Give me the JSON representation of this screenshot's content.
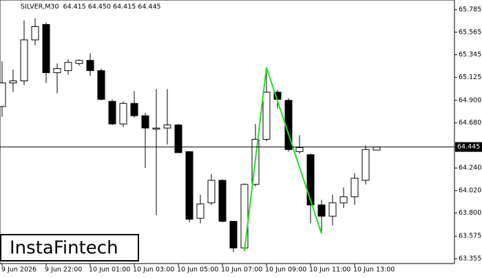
{
  "header": "SILVER,M30  64.415 64.450 64.415 64.445",
  "logo": "InstaFintech",
  "chart_data": {
    "type": "candlestick",
    "categories": [
      "9 Jun 2026",
      null,
      null,
      null,
      "9 Jun 22:00",
      null,
      null,
      null,
      "10 Jun 01:00",
      null,
      null,
      null,
      "10 Jun 03:00",
      null,
      null,
      null,
      "10 Jun 05:00",
      null,
      null,
      null,
      "10 Jun 07:00",
      null,
      null,
      null,
      "10 Jun 09:00",
      null,
      null,
      null,
      "10 Jun 11:00",
      null,
      null,
      null,
      "10 Jun 13:00",
      null,
      null
    ],
    "open": [
      64.84,
      65.07,
      65.09,
      65.49,
      65.64,
      65.17,
      65.19,
      65.26,
      65.29,
      65.19,
      64.89,
      64.67,
      64.87,
      64.75,
      64.62,
      64.63,
      64.66,
      64.4,
      63.75,
      63.9,
      64.12,
      63.72,
      63.46,
      64.08,
      64.52,
      64.98,
      64.9,
      64.4,
      64.37,
      63.88,
      63.77,
      63.9,
      63.96,
      64.12,
      64.415
    ],
    "high": [
      65.28,
      65.2,
      65.68,
      65.7,
      65.66,
      65.26,
      65.3,
      65.3,
      65.36,
      65.21,
      64.91,
      64.89,
      64.99,
      64.78,
      65.01,
      65.01,
      64.67,
      64.4,
      63.98,
      64.18,
      64.13,
      63.72,
      64.09,
      64.67,
      65.22,
      65.0,
      64.92,
      64.56,
      64.38,
      63.93,
      63.98,
      64.05,
      64.19,
      64.46,
      64.45
    ],
    "low": [
      64.74,
      64.98,
      65.05,
      65.44,
      65.07,
      64.97,
      65.15,
      65.24,
      65.14,
      64.9,
      64.66,
      64.64,
      64.73,
      64.24,
      63.78,
      64.47,
      64.39,
      63.71,
      63.7,
      63.88,
      63.71,
      63.42,
      63.43,
      64.06,
      64.5,
      64.82,
      64.4,
      64.38,
      63.7,
      63.6,
      63.68,
      63.85,
      63.88,
      64.08,
      64.415
    ],
    "close": [
      65.07,
      65.09,
      65.49,
      65.62,
      65.17,
      65.21,
      65.27,
      65.29,
      65.19,
      64.91,
      64.67,
      64.87,
      64.75,
      64.63,
      64.63,
      64.66,
      64.39,
      63.74,
      63.89,
      64.12,
      63.72,
      63.46,
      64.08,
      64.52,
      64.98,
      64.91,
      64.42,
      64.44,
      63.88,
      63.77,
      63.9,
      63.96,
      64.14,
      64.42,
      64.445
    ],
    "ylim": [
      63.355,
      65.785
    ],
    "yticks": [
      65.785,
      65.565,
      65.345,
      65.125,
      {
        "value": 64.9,
        "label": "64.900"
      },
      {
        "value": 64.68,
        "label": "64.680"
      },
      64.24,
      {
        "value": 64.24,
        "label": "64.240"
      },
      {
        "value": 64.02,
        "label": "64.020"
      },
      {
        "value": 63.8,
        "label": "63.800"
      },
      63.575,
      63.355
    ],
    "price_line": 64.445,
    "up_color": "#ffffff",
    "down_color": "#000000",
    "pattern_color": "#22dd22"
  }
}
